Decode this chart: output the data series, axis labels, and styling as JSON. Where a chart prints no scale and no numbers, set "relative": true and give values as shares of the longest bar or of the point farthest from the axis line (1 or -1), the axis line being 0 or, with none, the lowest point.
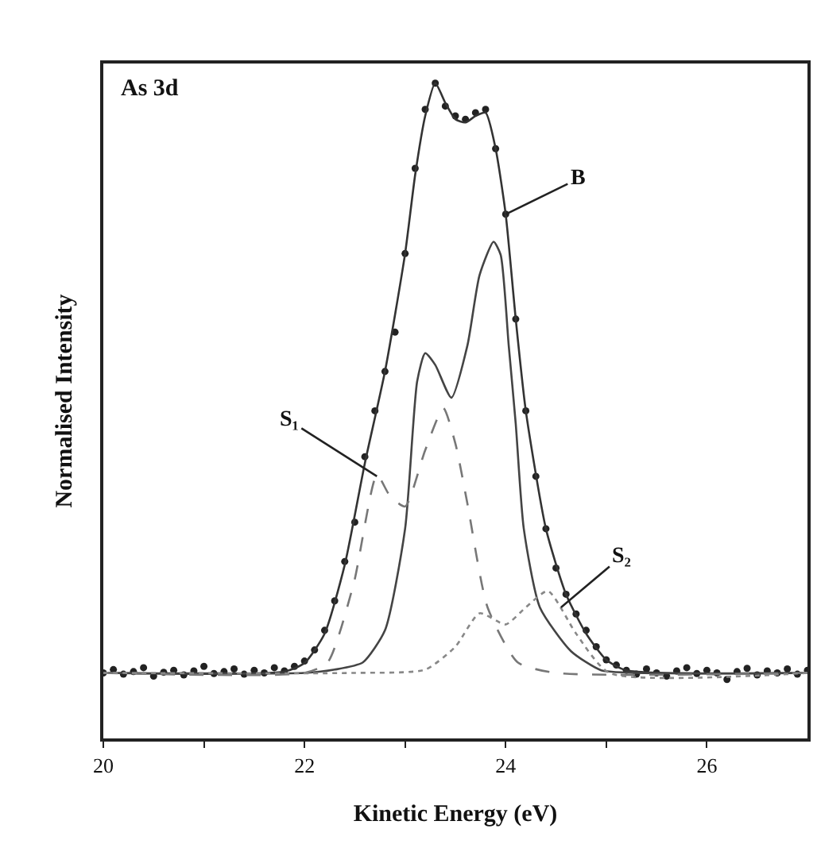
{
  "chart_data": {
    "type": "line",
    "relative": true,
    "xlabel": "Kinetic Energy (eV)",
    "ylabel": "Normalised Intensity",
    "xlim": [
      20,
      27
    ],
    "xticks": [
      20,
      {
        "value": 21,
        "label": null
      },
      22,
      {
        "value": 23,
        "label": null
      },
      24,
      {
        "value": 25,
        "label": null
      },
      26
    ],
    "tick_labels": "x",
    "annotations": [
      "As 3d",
      {
        "text": "B",
        "x": 24.0,
        "y": 0.8
      },
      {
        "text": "S₁",
        "x": 22.72,
        "y": 0.4
      },
      {
        "text": "S₂",
        "x": 24.55,
        "y": 0.2
      }
    ],
    "series": [
      {
        "type": "scatter",
        "marker": "circle",
        "color": "#222222",
        "x": [
          20.0,
          20.1,
          20.2,
          20.3,
          20.4,
          20.5,
          20.6,
          20.7,
          20.8,
          20.9,
          21.0,
          21.1,
          21.2,
          21.3,
          21.4,
          21.5,
          21.6,
          21.7,
          21.8,
          21.9,
          22.0,
          22.1,
          22.2,
          22.3,
          22.4,
          22.5,
          22.6,
          22.7,
          22.8,
          22.9,
          23.0,
          23.1,
          23.2,
          23.3,
          23.4,
          23.5,
          23.6,
          23.7,
          23.8,
          23.9,
          24.0,
          24.1,
          24.2,
          24.3,
          24.4,
          24.5,
          24.6,
          24.7,
          24.8,
          24.9,
          25.0,
          25.1,
          25.2,
          25.3,
          25.4,
          25.5,
          25.6,
          25.7,
          25.8,
          25.9,
          26.0,
          26.1,
          26.2,
          26.3,
          26.4,
          26.5,
          26.6,
          26.7,
          26.8,
          26.9,
          27.0
        ],
        "values": [
          0.1,
          0.105,
          0.098,
          0.102,
          0.108,
          0.095,
          0.101,
          0.104,
          0.097,
          0.103,
          0.11,
          0.099,
          0.102,
          0.106,
          0.098,
          0.104,
          0.1,
          0.108,
          0.103,
          0.11,
          0.118,
          0.135,
          0.165,
          0.21,
          0.27,
          0.33,
          0.43,
          0.5,
          0.56,
          0.62,
          0.74,
          0.87,
          0.96,
          1.0,
          0.965,
          0.95,
          0.945,
          0.955,
          0.96,
          0.9,
          0.8,
          0.64,
          0.5,
          0.4,
          0.32,
          0.26,
          0.22,
          0.19,
          0.165,
          0.14,
          0.12,
          0.112,
          0.104,
          0.098,
          0.106,
          0.1,
          0.095,
          0.103,
          0.108,
          0.099,
          0.104,
          0.1,
          0.09,
          0.102,
          0.107,
          0.097,
          0.103,
          0.1,
          0.106,
          0.098,
          0.104
        ]
      },
      {
        "marker": "none",
        "line_style": "solid",
        "color": "#333333",
        "x": [
          20.0,
          21.8,
          22.0,
          22.2,
          22.4,
          22.6,
          22.8,
          23.0,
          23.1,
          23.2,
          23.3,
          23.4,
          23.5,
          23.6,
          23.7,
          23.8,
          23.9,
          24.0,
          24.1,
          24.2,
          24.4,
          24.6,
          24.8,
          25.0,
          25.2,
          27.0
        ],
        "values": [
          0.1,
          0.102,
          0.115,
          0.16,
          0.265,
          0.42,
          0.56,
          0.74,
          0.86,
          0.95,
          1.0,
          0.97,
          0.945,
          0.94,
          0.95,
          0.955,
          0.9,
          0.8,
          0.64,
          0.5,
          0.32,
          0.22,
          0.16,
          0.12,
          0.104,
          0.1
        ]
      },
      {
        "marker": "none",
        "line_style": "solid",
        "color": "#444444",
        "x": [
          20.0,
          22.0,
          22.3,
          22.58,
          22.8,
          23.0,
          23.12,
          23.2,
          23.3,
          23.46,
          23.62,
          23.74,
          23.88,
          23.95,
          24.03,
          24.1,
          24.18,
          24.34,
          24.65,
          24.95,
          25.3,
          27.0
        ],
        "values": [
          0.1,
          0.1,
          0.105,
          0.116,
          0.165,
          0.32,
          0.545,
          0.588,
          0.57,
          0.52,
          0.6,
          0.707,
          0.758,
          0.738,
          0.6,
          0.48,
          0.32,
          0.2,
          0.133,
          0.104,
          0.1,
          0.1
        ]
      },
      {
        "marker": "none",
        "line_style": "dashed",
        "color": "#777777",
        "x": [
          20.0,
          22.0,
          22.23,
          22.49,
          22.72,
          22.85,
          23.0,
          23.2,
          23.38,
          23.5,
          23.62,
          23.82,
          24.12,
          24.5,
          27.0
        ],
        "values": [
          0.1,
          0.1,
          0.116,
          0.237,
          0.402,
          0.37,
          0.354,
          0.44,
          0.504,
          0.45,
          0.358,
          0.2,
          0.116,
          0.1,
          0.1
        ]
      },
      {
        "marker": "none",
        "line_style": "dotted",
        "color": "#888888",
        "x": [
          20.0,
          22.5,
          23.2,
          23.5,
          23.74,
          24.0,
          24.2,
          24.42,
          24.7,
          25.03,
          27.0
        ],
        "values": [
          0.1,
          0.1,
          0.105,
          0.14,
          0.191,
          0.174,
          0.2,
          0.225,
          0.16,
          0.1,
          0.1
        ]
      }
    ]
  }
}
